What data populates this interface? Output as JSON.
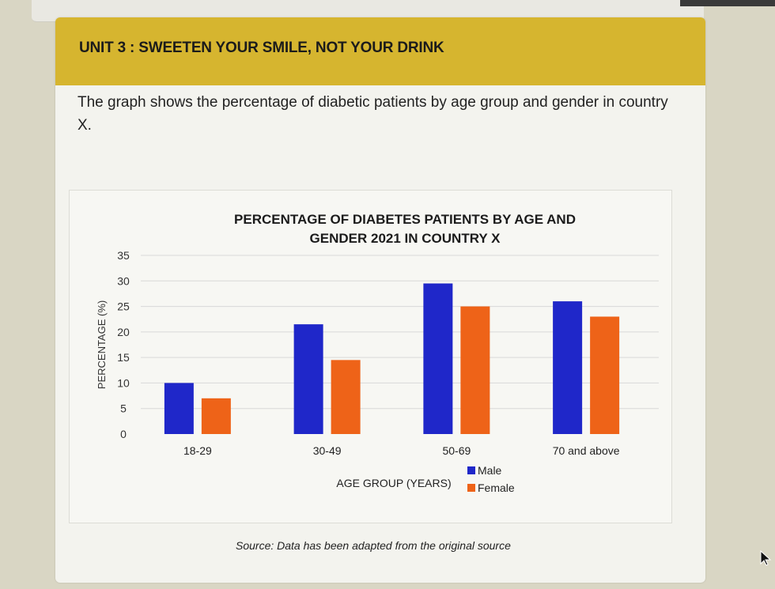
{
  "unit": {
    "title": "UNIT 3 : SWEETEN YOUR SMILE, NOT YOUR DRINK"
  },
  "intro": {
    "text": "The graph shows the percentage of diabetic patients by age group and gender in country X."
  },
  "source": {
    "text": "Source: Data has been adapted from the original source"
  },
  "colors": {
    "male": "#1f27c9",
    "female": "#ee6318",
    "header": "#d6b52f",
    "grid": "#d8d8d8"
  },
  "chart_data": {
    "type": "bar",
    "title_lines": [
      "PERCENTAGE OF DIABETES PATIENTS BY AGE AND",
      "GENDER 2021 IN COUNTRY X"
    ],
    "xlabel": "AGE GROUP (YEARS)",
    "ylabel": "PERCENTAGE (%)",
    "ylim": [
      0,
      35
    ],
    "yticks": [
      0,
      5,
      10,
      15,
      20,
      25,
      30,
      35
    ],
    "grid": true,
    "legend_position": "bottom-right",
    "categories": [
      "18-29",
      "30-49",
      "50-69",
      "70 and above"
    ],
    "series": [
      {
        "name": "Male",
        "values": [
          10,
          21.5,
          29.5,
          26
        ]
      },
      {
        "name": "Female",
        "values": [
          7,
          14.5,
          25,
          23
        ]
      }
    ]
  }
}
